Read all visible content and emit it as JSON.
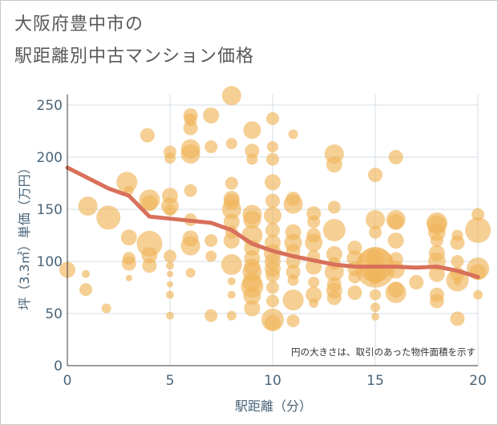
{
  "title_lines": [
    "大阪府豊中市の",
    "駅距離別中古マンション価格"
  ],
  "chart_data": {
    "type": "scatter",
    "title": "大阪府豊中市の駅距離別中古マンション価格",
    "xlabel": "駅距離（分）",
    "ylabel": "坪（3.3㎡）単価（万円）",
    "xlim": [
      0,
      20
    ],
    "ylim": [
      0,
      260
    ],
    "xticks": [
      0,
      5,
      10,
      15,
      20
    ],
    "yticks": [
      0,
      50,
      100,
      150,
      200,
      250
    ],
    "grid": true,
    "note": "円の大きさは、取引のあった物件面積を示す",
    "colors": {
      "bubble": "#f0b65a",
      "line": "#d8705a",
      "axis_text": "#4a6478",
      "grid": "#d4dee6",
      "title": "#595959"
    },
    "series": [
      {
        "kind": "bubble",
        "points": [
          {
            "x": 0,
            "y": 92,
            "s": 10
          },
          {
            "x": 0.9,
            "y": 88,
            "s": 5
          },
          {
            "x": 0.9,
            "y": 73,
            "s": 8
          },
          {
            "x": 1,
            "y": 153,
            "s": 12
          },
          {
            "x": 1.9,
            "y": 55,
            "s": 6
          },
          {
            "x": 2,
            "y": 142,
            "s": 15
          },
          {
            "x": 2.9,
            "y": 176,
            "s": 13
          },
          {
            "x": 3,
            "y": 168,
            "s": 6
          },
          {
            "x": 3,
            "y": 123,
            "s": 10
          },
          {
            "x": 3,
            "y": 103,
            "s": 8
          },
          {
            "x": 3,
            "y": 98,
            "s": 9
          },
          {
            "x": 3,
            "y": 84,
            "s": 4
          },
          {
            "x": 3.9,
            "y": 221,
            "s": 9
          },
          {
            "x": 4,
            "y": 159,
            "s": 13
          },
          {
            "x": 4,
            "y": 156,
            "s": 10
          },
          {
            "x": 4,
            "y": 117,
            "s": 16
          },
          {
            "x": 4,
            "y": 106,
            "s": 10
          },
          {
            "x": 4,
            "y": 96,
            "s": 9
          },
          {
            "x": 5,
            "y": 205,
            "s": 8
          },
          {
            "x": 5,
            "y": 199,
            "s": 7
          },
          {
            "x": 5,
            "y": 163,
            "s": 10
          },
          {
            "x": 5,
            "y": 153,
            "s": 11
          },
          {
            "x": 5,
            "y": 149,
            "s": 7
          },
          {
            "x": 5,
            "y": 105,
            "s": 8
          },
          {
            "x": 5,
            "y": 96,
            "s": 5
          },
          {
            "x": 5,
            "y": 88,
            "s": 4
          },
          {
            "x": 5,
            "y": 78,
            "s": 4
          },
          {
            "x": 5,
            "y": 68,
            "s": 5
          },
          {
            "x": 5,
            "y": 48,
            "s": 5
          },
          {
            "x": 6,
            "y": 240,
            "s": 9
          },
          {
            "x": 6,
            "y": 236,
            "s": 8
          },
          {
            "x": 6,
            "y": 228,
            "s": 9
          },
          {
            "x": 6,
            "y": 208,
            "s": 12
          },
          {
            "x": 6,
            "y": 203,
            "s": 12
          },
          {
            "x": 6,
            "y": 168,
            "s": 8
          },
          {
            "x": 6,
            "y": 140,
            "s": 8
          },
          {
            "x": 6,
            "y": 122,
            "s": 10
          },
          {
            "x": 6,
            "y": 115,
            "s": 12
          },
          {
            "x": 6,
            "y": 89,
            "s": 6
          },
          {
            "x": 7,
            "y": 240,
            "s": 10
          },
          {
            "x": 7,
            "y": 210,
            "s": 8
          },
          {
            "x": 7,
            "y": 120,
            "s": 8
          },
          {
            "x": 7,
            "y": 105,
            "s": 7
          },
          {
            "x": 7,
            "y": 48,
            "s": 8
          },
          {
            "x": 8,
            "y": 259,
            "s": 12
          },
          {
            "x": 8,
            "y": 213,
            "s": 7
          },
          {
            "x": 8,
            "y": 175,
            "s": 8
          },
          {
            "x": 8,
            "y": 160,
            "s": 10
          },
          {
            "x": 8,
            "y": 157,
            "s": 10
          },
          {
            "x": 8,
            "y": 150,
            "s": 12
          },
          {
            "x": 8,
            "y": 138,
            "s": 10
          },
          {
            "x": 8,
            "y": 128,
            "s": 8
          },
          {
            "x": 8,
            "y": 120,
            "s": 10
          },
          {
            "x": 8,
            "y": 97,
            "s": 13
          },
          {
            "x": 8,
            "y": 81,
            "s": 5
          },
          {
            "x": 8,
            "y": 68,
            "s": 5
          },
          {
            "x": 8,
            "y": 48,
            "s": 6
          },
          {
            "x": 9,
            "y": 226,
            "s": 11
          },
          {
            "x": 9,
            "y": 206,
            "s": 9
          },
          {
            "x": 9,
            "y": 198,
            "s": 7
          },
          {
            "x": 9,
            "y": 145,
            "s": 12
          },
          {
            "x": 9,
            "y": 140,
            "s": 11
          },
          {
            "x": 9,
            "y": 125,
            "s": 13
          },
          {
            "x": 9,
            "y": 113,
            "s": 10
          },
          {
            "x": 9,
            "y": 103,
            "s": 10
          },
          {
            "x": 9,
            "y": 95,
            "s": 10
          },
          {
            "x": 9,
            "y": 90,
            "s": 12
          },
          {
            "x": 9,
            "y": 80,
            "s": 12
          },
          {
            "x": 9,
            "y": 76,
            "s": 14
          },
          {
            "x": 9,
            "y": 67,
            "s": 11
          },
          {
            "x": 9,
            "y": 55,
            "s": 10
          },
          {
            "x": 10,
            "y": 237,
            "s": 8
          },
          {
            "x": 10,
            "y": 210,
            "s": 7
          },
          {
            "x": 10,
            "y": 198,
            "s": 8
          },
          {
            "x": 10,
            "y": 176,
            "s": 10
          },
          {
            "x": 10,
            "y": 158,
            "s": 9
          },
          {
            "x": 10,
            "y": 144,
            "s": 11
          },
          {
            "x": 10,
            "y": 130,
            "s": 9
          },
          {
            "x": 10,
            "y": 118,
            "s": 10
          },
          {
            "x": 10,
            "y": 108,
            "s": 11
          },
          {
            "x": 10,
            "y": 100,
            "s": 10
          },
          {
            "x": 10,
            "y": 93,
            "s": 10
          },
          {
            "x": 10,
            "y": 87,
            "s": 9
          },
          {
            "x": 10,
            "y": 75,
            "s": 8
          },
          {
            "x": 10,
            "y": 62,
            "s": 8
          },
          {
            "x": 10,
            "y": 44,
            "s": 14
          },
          {
            "x": 10,
            "y": 41,
            "s": 10
          },
          {
            "x": 11,
            "y": 222,
            "s": 6
          },
          {
            "x": 11,
            "y": 160,
            "s": 9
          },
          {
            "x": 11,
            "y": 155,
            "s": 12
          },
          {
            "x": 11,
            "y": 128,
            "s": 10
          },
          {
            "x": 11,
            "y": 118,
            "s": 11
          },
          {
            "x": 11,
            "y": 110,
            "s": 9
          },
          {
            "x": 11,
            "y": 100,
            "s": 9
          },
          {
            "x": 11,
            "y": 90,
            "s": 9
          },
          {
            "x": 11,
            "y": 82,
            "s": 7
          },
          {
            "x": 11,
            "y": 63,
            "s": 13
          },
          {
            "x": 11,
            "y": 43,
            "s": 8
          },
          {
            "x": 12,
            "y": 146,
            "s": 9
          },
          {
            "x": 12,
            "y": 138,
            "s": 8
          },
          {
            "x": 12,
            "y": 125,
            "s": 9
          },
          {
            "x": 12,
            "y": 118,
            "s": 11
          },
          {
            "x": 12,
            "y": 105,
            "s": 8
          },
          {
            "x": 12,
            "y": 95,
            "s": 10
          },
          {
            "x": 12,
            "y": 80,
            "s": 7
          },
          {
            "x": 12,
            "y": 68,
            "s": 10
          },
          {
            "x": 12,
            "y": 60,
            "s": 6
          },
          {
            "x": 13,
            "y": 203,
            "s": 12
          },
          {
            "x": 13,
            "y": 193,
            "s": 10
          },
          {
            "x": 13,
            "y": 152,
            "s": 8
          },
          {
            "x": 13,
            "y": 130,
            "s": 14
          },
          {
            "x": 13,
            "y": 107,
            "s": 10
          },
          {
            "x": 13,
            "y": 98,
            "s": 8
          },
          {
            "x": 13,
            "y": 90,
            "s": 12
          },
          {
            "x": 13,
            "y": 78,
            "s": 9
          },
          {
            "x": 13,
            "y": 72,
            "s": 10
          },
          {
            "x": 13,
            "y": 65,
            "s": 9
          },
          {
            "x": 14,
            "y": 113,
            "s": 9
          },
          {
            "x": 14,
            "y": 103,
            "s": 10
          },
          {
            "x": 14,
            "y": 93,
            "s": 9
          },
          {
            "x": 14,
            "y": 85,
            "s": 8
          },
          {
            "x": 14,
            "y": 70,
            "s": 9
          },
          {
            "x": 15,
            "y": 183,
            "s": 9
          },
          {
            "x": 15,
            "y": 140,
            "s": 12
          },
          {
            "x": 15,
            "y": 128,
            "s": 8
          },
          {
            "x": 15,
            "y": 103,
            "s": 11
          },
          {
            "x": 15,
            "y": 97,
            "s": 22
          },
          {
            "x": 15,
            "y": 94,
            "s": 25
          },
          {
            "x": 15,
            "y": 90,
            "s": 14
          },
          {
            "x": 15,
            "y": 85,
            "s": 9
          },
          {
            "x": 15,
            "y": 68,
            "s": 7
          },
          {
            "x": 15,
            "y": 56,
            "s": 6
          },
          {
            "x": 15,
            "y": 47,
            "s": 5
          },
          {
            "x": 16,
            "y": 200,
            "s": 9
          },
          {
            "x": 16,
            "y": 140,
            "s": 12
          },
          {
            "x": 16,
            "y": 138,
            "s": 10
          },
          {
            "x": 16,
            "y": 120,
            "s": 10
          },
          {
            "x": 16,
            "y": 102,
            "s": 9
          },
          {
            "x": 16,
            "y": 92,
            "s": 11
          },
          {
            "x": 16,
            "y": 73,
            "s": 10
          },
          {
            "x": 16,
            "y": 70,
            "s": 13
          },
          {
            "x": 17,
            "y": 80,
            "s": 9
          },
          {
            "x": 18,
            "y": 137,
            "s": 13
          },
          {
            "x": 18,
            "y": 135,
            "s": 12
          },
          {
            "x": 18,
            "y": 128,
            "s": 11
          },
          {
            "x": 18,
            "y": 120,
            "s": 8
          },
          {
            "x": 18,
            "y": 108,
            "s": 10
          },
          {
            "x": 18,
            "y": 100,
            "s": 11
          },
          {
            "x": 18,
            "y": 88,
            "s": 10
          },
          {
            "x": 18,
            "y": 68,
            "s": 9
          },
          {
            "x": 18,
            "y": 62,
            "s": 9
          },
          {
            "x": 19,
            "y": 125,
            "s": 7
          },
          {
            "x": 19,
            "y": 118,
            "s": 9
          },
          {
            "x": 19,
            "y": 100,
            "s": 8
          },
          {
            "x": 19,
            "y": 88,
            "s": 9
          },
          {
            "x": 19,
            "y": 82,
            "s": 14
          },
          {
            "x": 19,
            "y": 81,
            "s": 5
          },
          {
            "x": 19,
            "y": 45,
            "s": 9
          },
          {
            "x": 20,
            "y": 145,
            "s": 8
          },
          {
            "x": 20,
            "y": 130,
            "s": 16
          },
          {
            "x": 20,
            "y": 93,
            "s": 14
          },
          {
            "x": 20,
            "y": 90,
            "s": 10
          },
          {
            "x": 20,
            "y": 68,
            "s": 6
          }
        ]
      },
      {
        "kind": "line",
        "x": [
          0,
          1,
          2,
          3,
          4,
          5,
          6,
          7,
          8,
          9,
          10,
          11,
          12,
          13,
          14,
          15,
          16,
          17,
          18,
          19,
          20
        ],
        "y": [
          190,
          180,
          170,
          163,
          143,
          141,
          139,
          137,
          130,
          117,
          110,
          105,
          101,
          97,
          95,
          95,
          95,
          94,
          95,
          91,
          85
        ]
      }
    ]
  }
}
